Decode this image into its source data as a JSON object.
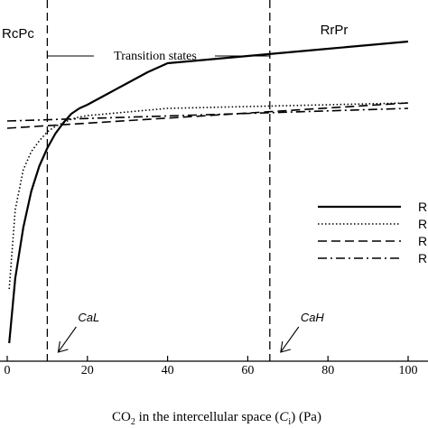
{
  "chart_data": {
    "type": "line",
    "xlabel": {
      "pre": "CO",
      "sub1": "2",
      "mid": " in the intercellular space (",
      "var": "C",
      "sub2": "i",
      "post": ") (Pa)"
    },
    "xlim": [
      -2,
      103
    ],
    "ylim": [
      0,
      1
    ],
    "x_ticks": [
      0,
      20,
      40,
      60,
      80,
      100
    ],
    "x_tick_labels": [
      "0",
      "20",
      "40",
      "60",
      "80",
      "100"
    ],
    "region_labels": {
      "left": "RcPc",
      "middle": "Transition states",
      "right": "RrPr"
    },
    "vlines": [
      {
        "x": 10,
        "label": "CaL"
      },
      {
        "x": 65.5,
        "label": "CaH"
      }
    ],
    "legend_labels": [
      "R",
      "R",
      "R",
      "R"
    ],
    "series": [
      {
        "style": "solid",
        "x": [
          0.5,
          2,
          4,
          6,
          8,
          10,
          12,
          14,
          16,
          18,
          20,
          25,
          30,
          35,
          40,
          50,
          60,
          70,
          80,
          90,
          100
        ],
        "y": [
          0.05,
          0.23,
          0.37,
          0.47,
          0.54,
          0.59,
          0.63,
          0.66,
          0.685,
          0.7,
          0.71,
          0.74,
          0.77,
          0.8,
          0.825,
          0.835,
          0.845,
          0.855,
          0.865,
          0.875,
          0.885
        ]
      },
      {
        "style": "dotted",
        "x": [
          0.5,
          2,
          4,
          6,
          8,
          10,
          12,
          14,
          16,
          18,
          20,
          30,
          40,
          60,
          80,
          100
        ],
        "y": [
          0.2,
          0.42,
          0.53,
          0.58,
          0.61,
          0.635,
          0.65,
          0.66,
          0.67,
          0.676,
          0.68,
          0.69,
          0.7,
          0.705,
          0.71,
          0.715
        ]
      },
      {
        "style": "dashed",
        "x": [
          0,
          100
        ],
        "y": [
          0.645,
          0.715
        ]
      },
      {
        "style": "dashdot",
        "x": [
          0,
          100
        ],
        "y": [
          0.665,
          0.7
        ]
      }
    ]
  }
}
